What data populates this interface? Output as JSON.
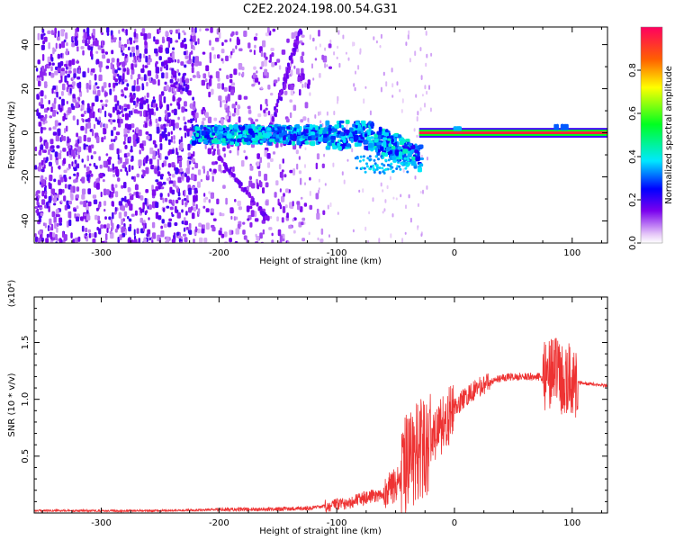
{
  "title": "C2E2.2024.198.00.54.G31",
  "chart_data": [
    {
      "type": "heatmap",
      "xlabel": "Height of straight line (km)",
      "ylabel": "Frequency (Hz)",
      "xlim": [
        -357,
        130
      ],
      "ylim": [
        -50,
        48
      ],
      "xticks": [
        "-300",
        "-200",
        "-100",
        "0",
        "100"
      ],
      "yticks": [
        "40",
        "20",
        "0",
        "-20",
        "-40"
      ],
      "colorbar": {
        "label": "Normalized spectral amplitude",
        "range": [
          0,
          1
        ],
        "ticks": [
          "0.0",
          "0.2",
          "0.4",
          "0.6",
          "0.8"
        ]
      },
      "features": [
        {
          "desc": "scattered noise",
          "x_range": [
            -357,
            -120
          ],
          "y_range": [
            -50,
            48
          ]
        },
        {
          "desc": "stable carrier line",
          "x_range": [
            -30,
            130
          ],
          "frequency": 0
        }
      ]
    },
    {
      "type": "line",
      "xlabel": "Height of straight line (km)",
      "ylabel": "SNR (10 * v/v)",
      "multiplier": "(x10⁴)",
      "xlim": [
        -357,
        130
      ],
      "ylim": [
        0,
        19000
      ],
      "xticks": [
        "-300",
        "-200",
        "-100",
        "0",
        "100"
      ],
      "yticks": [
        "0.5",
        "1.0",
        "1.5"
      ],
      "color": "#ee3333",
      "series": [
        {
          "x": [
            -357,
            -300,
            -250,
            -200,
            -150,
            -120,
            -100,
            -80,
            -60,
            -50,
            -40,
            -30,
            -25,
            -20,
            -10,
            0,
            10,
            20,
            30,
            40,
            50,
            60,
            70,
            80,
            85,
            90,
            95,
            100,
            110,
            120,
            130
          ],
          "y": [
            200,
            200,
            200,
            300,
            350,
            450,
            700,
            1200,
            1700,
            2500,
            4500,
            5500,
            5800,
            6500,
            7800,
            9200,
            10300,
            11000,
            11500,
            11900,
            12000,
            12000,
            12000,
            11900,
            12500,
            11700,
            12000,
            11600,
            11400,
            11300,
            11200
          ]
        }
      ]
    }
  ]
}
